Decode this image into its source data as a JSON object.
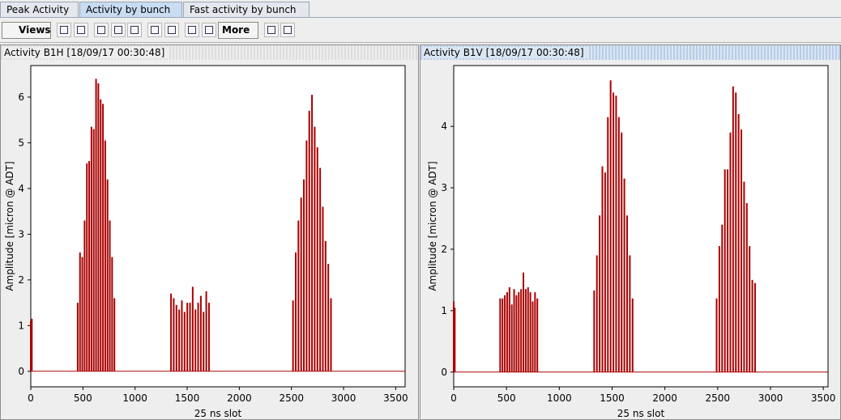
{
  "tabs": [
    "Peak Activity",
    "Activity by bunch",
    "Fast activity by bunch"
  ],
  "toolbar": {
    "views": "Views",
    "more": "More"
  },
  "chart_data": [
    {
      "type": "bar",
      "title": "Activity B1H  [18/09/17 00:30:48]",
      "xlabel": "25 ns slot",
      "ylabel": "Amplitude [micron @ ADT]",
      "color": "#aa0000",
      "x": [
        0,
        10,
        450,
        472,
        494,
        516,
        538,
        560,
        582,
        604,
        626,
        648,
        670,
        692,
        714,
        736,
        758,
        780,
        802,
        1345,
        1371,
        1397,
        1423,
        1449,
        1475,
        1501,
        1527,
        1553,
        1579,
        1605,
        1631,
        1657,
        1683,
        1709,
        2515,
        2541,
        2567,
        2593,
        2619,
        2645,
        2671,
        2697,
        2723,
        2749,
        2775,
        2801,
        2827,
        2853,
        2879
      ],
      "values": [
        1.1,
        1.15,
        1.5,
        2.6,
        2.5,
        3.3,
        4.55,
        4.6,
        5.35,
        5.3,
        6.4,
        6.3,
        5.95,
        5.85,
        5.05,
        4.2,
        3.3,
        2.5,
        1.6,
        1.7,
        1.6,
        1.45,
        1.35,
        1.55,
        1.3,
        1.5,
        1.5,
        1.85,
        1.35,
        1.5,
        1.65,
        1.3,
        1.75,
        1.5,
        1.55,
        2.6,
        3.3,
        3.8,
        4.2,
        5.05,
        5.7,
        6.05,
        5.35,
        4.9,
        4.45,
        3.6,
        2.85,
        2.35,
        1.6
      ],
      "xlim": [
        0,
        3590
      ],
      "ylim": [
        -0.34,
        6.69
      ],
      "xticks": [
        0,
        500,
        1000,
        1500,
        2000,
        2500,
        3000,
        3500
      ],
      "yticks": [
        0,
        1,
        2,
        3,
        4,
        5,
        6
      ]
    },
    {
      "type": "bar",
      "title": "Activity B1V  [18/09/17 00:30:48]",
      "xlabel": "25 ns slot",
      "ylabel": "Amplitude [micron @ ADT]",
      "color": "#aa0000",
      "x": [
        0,
        10,
        440,
        462,
        484,
        506,
        528,
        550,
        572,
        594,
        616,
        638,
        660,
        682,
        704,
        726,
        748,
        770,
        792,
        1330,
        1356,
        1382,
        1408,
        1434,
        1460,
        1486,
        1512,
        1538,
        1564,
        1590,
        1616,
        1642,
        1668,
        1694,
        2490,
        2516,
        2542,
        2568,
        2594,
        2620,
        2646,
        2672,
        2698,
        2724,
        2750,
        2776,
        2802,
        2828,
        2854
      ],
      "values": [
        1.15,
        1.05,
        1.2,
        1.2,
        1.25,
        1.3,
        1.38,
        1.1,
        1.35,
        1.25,
        1.3,
        1.35,
        1.62,
        1.35,
        1.38,
        1.3,
        1.15,
        1.3,
        1.2,
        1.33,
        1.9,
        2.55,
        3.35,
        3.25,
        4.15,
        4.75,
        4.55,
        4.5,
        4.15,
        3.9,
        3.15,
        2.55,
        1.9,
        1.2,
        1.2,
        2.05,
        2.4,
        3.3,
        3.3,
        3.9,
        4.65,
        4.55,
        4.2,
        3.95,
        3.1,
        2.75,
        2.05,
        1.5,
        1.45
      ],
      "xlim": [
        0,
        3545
      ],
      "ylim": [
        -0.24,
        4.99
      ],
      "xticks": [
        0,
        500,
        1000,
        1500,
        2000,
        2500,
        3000,
        3500
      ],
      "yticks": [
        0,
        1,
        2,
        3,
        4
      ]
    }
  ]
}
